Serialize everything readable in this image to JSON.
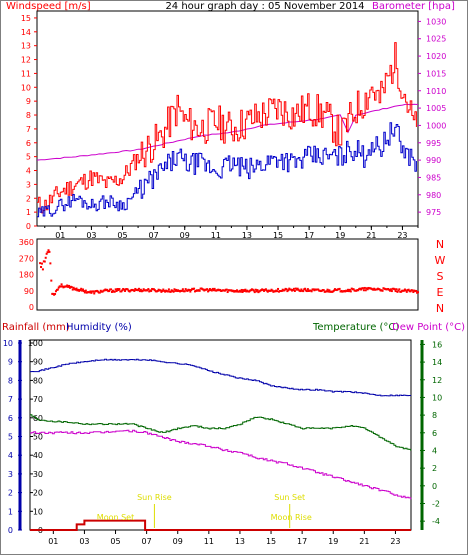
{
  "header": {
    "left_title": "Windspeed [m/s]",
    "center_title": "24 hour graph day : 05 November 2014",
    "right_title": "Barometer [hpa]"
  },
  "colors": {
    "wind": "#ff0000",
    "gust": "#ff0000",
    "avg": "#0000cc",
    "baro": "#cc00cc",
    "humidity": "#0000aa",
    "temperature": "#006600",
    "dewpoint": "#cc00cc",
    "rain": "#cc0000",
    "sun": "#dddd00",
    "axis": "#000000",
    "grid": "#bbbbbb"
  },
  "chart_data": [
    {
      "type": "line",
      "name": "wind-barometer",
      "x_ticks": [
        "01",
        "03",
        "05",
        "07",
        "09",
        "11",
        "13",
        "15",
        "17",
        "19",
        "21",
        "23"
      ],
      "x_hours": [
        1,
        3,
        5,
        7,
        9,
        11,
        13,
        15,
        17,
        19,
        21,
        23
      ],
      "xlim": [
        -0.5,
        24
      ],
      "left_axis": {
        "label": "Windspeed [m/s]",
        "ticks": [
          0,
          1,
          2,
          3,
          4,
          5,
          6,
          7,
          8,
          9,
          10,
          11,
          12,
          13,
          14,
          15
        ],
        "ylim": [
          0,
          15.5
        ]
      },
      "right_axis": {
        "label": "Barometer [hpa]",
        "ticks": [
          975,
          980,
          985,
          990,
          995,
          1000,
          1005,
          1010,
          1015,
          1020,
          1025,
          1030
        ],
        "ylim": [
          971,
          1033
        ]
      },
      "series": [
        {
          "name": "gust",
          "axis": "left",
          "x": [
            -0.5,
            0,
            1,
            2,
            3,
            4,
            5,
            6,
            6.5,
            7,
            7.5,
            8,
            8.5,
            9,
            10,
            11,
            12,
            13,
            14,
            15,
            16,
            17,
            18,
            19,
            19.5,
            20,
            20.5,
            21,
            21.5,
            22,
            22.5,
            23,
            23.5,
            24
          ],
          "y": [
            1.5,
            1.5,
            2.5,
            3,
            3.5,
            3,
            3.5,
            5,
            5.5,
            6,
            6.5,
            7.5,
            8.5,
            7.5,
            7,
            7.5,
            7,
            7.5,
            8,
            8.5,
            8,
            8.5,
            8,
            6.5,
            7.5,
            8.5,
            9,
            10,
            9,
            10.5,
            12,
            10,
            8,
            6.5
          ]
        },
        {
          "name": "average",
          "axis": "left",
          "x": [
            -0.5,
            0,
            1,
            2,
            3,
            4,
            5,
            6,
            6.5,
            7,
            7.5,
            8,
            8.5,
            9,
            10,
            11,
            12,
            13,
            14,
            15,
            16,
            17,
            18,
            19,
            19.5,
            20,
            20.5,
            21,
            21.5,
            22,
            22.5,
            23,
            23.5,
            24
          ],
          "y": [
            0.8,
            1,
            1.5,
            2,
            1.5,
            1.8,
            1.5,
            2.5,
            3,
            3.5,
            4,
            4.5,
            5,
            4.5,
            4.5,
            4,
            4.5,
            4,
            4.5,
            5,
            4.5,
            5,
            5,
            5,
            5.5,
            5.5,
            5,
            6,
            5.5,
            6.5,
            7,
            5.5,
            5,
            4.5
          ]
        },
        {
          "name": "barometer",
          "axis": "right",
          "x": [
            -0.5,
            2,
            4,
            6,
            7,
            8,
            9,
            10,
            12,
            14,
            16,
            18,
            19,
            19.5,
            20,
            21,
            22,
            23,
            24
          ],
          "y": [
            990,
            991,
            992,
            993,
            994,
            995,
            996,
            997,
            998,
            1000,
            1001,
            1002,
            1003,
            998,
            1003,
            1004,
            1005,
            1006,
            1006
          ]
        }
      ]
    },
    {
      "type": "scatter",
      "name": "wind-direction",
      "left_ticks": [
        0,
        90,
        180,
        270,
        360
      ],
      "right_labels": [
        "N",
        "W",
        "S",
        "E",
        "N"
      ],
      "ylim": [
        0,
        360
      ],
      "series": [
        {
          "name": "direction",
          "x": [
            -0.3,
            -0.1,
            0.1,
            0.3,
            0.5,
            1,
            2,
            3,
            4,
            6,
            8,
            10,
            12,
            14,
            16,
            18,
            20,
            21,
            22,
            23,
            24
          ],
          "y": [
            250,
            220,
            290,
            320,
            60,
            120,
            100,
            80,
            90,
            95,
            90,
            95,
            90,
            90,
            95,
            90,
            95,
            100,
            95,
            90,
            85
          ]
        }
      ]
    },
    {
      "type": "line",
      "name": "rain-humidity-temperature",
      "title_left": "Rainfall (mm)",
      "title_humidity": "Humidity (%)",
      "title_temperature": "Temperature (°C)",
      "title_dewpoint": "Dew Point (°C)",
      "x_ticks": [
        "01",
        "03",
        "05",
        "07",
        "09",
        "11",
        "13",
        "15",
        "17",
        "19",
        "21",
        "23"
      ],
      "rain_axis": {
        "ticks": [
          0,
          1,
          2,
          3,
          4,
          5,
          6,
          7,
          8,
          9,
          10
        ],
        "ylim": [
          0,
          10
        ]
      },
      "humidity_axis": {
        "ticks": [
          0,
          10,
          20,
          30,
          40,
          50,
          60,
          70,
          80,
          90,
          100
        ],
        "ylim": [
          0,
          100
        ]
      },
      "temp_axis": {
        "ticks": [
          -4,
          -2,
          0,
          2,
          4,
          6,
          8,
          10,
          12,
          14,
          16
        ],
        "ylim": [
          -5,
          16.5
        ]
      },
      "series": [
        {
          "name": "humidity",
          "axis": "humidity",
          "x": [
            -0.5,
            0,
            1,
            2,
            3,
            4,
            5,
            6,
            7,
            8,
            9,
            10,
            11,
            12,
            13,
            14,
            15,
            16,
            17,
            18,
            19,
            20,
            21,
            22,
            23,
            24
          ],
          "y": [
            85,
            85,
            87,
            89,
            90,
            91,
            91,
            91,
            91,
            90,
            89,
            88,
            85,
            83,
            81,
            80,
            77,
            76,
            75,
            75,
            74,
            74,
            73,
            72,
            72,
            72
          ]
        },
        {
          "name": "temperature",
          "axis": "temp",
          "x": [
            -0.5,
            0,
            1,
            2,
            3,
            4,
            5,
            6,
            7,
            8,
            9,
            10,
            11,
            12,
            13,
            14,
            15,
            16,
            17,
            18,
            19,
            20,
            21,
            22,
            23,
            24
          ],
          "y": [
            8,
            7.5,
            7.3,
            7.2,
            7,
            7,
            7,
            7,
            6.5,
            6,
            6.5,
            6.8,
            6.5,
            6.5,
            7,
            7.8,
            7.5,
            7,
            6.5,
            6.5,
            6.5,
            6.8,
            6.5,
            5.5,
            4.5,
            4
          ]
        },
        {
          "name": "dewpoint",
          "axis": "temp",
          "x": [
            -0.5,
            0,
            1,
            2,
            3,
            4,
            5,
            6,
            7,
            8,
            9,
            10,
            11,
            12,
            13,
            14,
            15,
            16,
            17,
            18,
            19,
            20,
            21,
            22,
            23,
            24
          ],
          "y": [
            6,
            6,
            6,
            6,
            6,
            6,
            6.2,
            6.2,
            6,
            5.5,
            5,
            4.8,
            4.5,
            4,
            3.8,
            3.2,
            2.8,
            2.5,
            2,
            1.5,
            1,
            0.5,
            0,
            -0.5,
            -1,
            -1.5
          ]
        },
        {
          "name": "rainfall",
          "axis": "rain",
          "x": [
            -0.5,
            1.5,
            2.5,
            3,
            6.8,
            6.9,
            7.2,
            24
          ],
          "y": [
            0,
            0,
            0.3,
            0.5,
            0.5,
            0,
            0,
            0
          ]
        }
      ],
      "annotations": [
        {
          "text": "Sun Rise",
          "x": 7.5,
          "pos": "upper"
        },
        {
          "text": "Sun Set",
          "x": 16.2,
          "pos": "upper"
        },
        {
          "text": "Moon Set",
          "x": 5.0,
          "pos": "lower"
        },
        {
          "text": "Moon Rise",
          "x": 16.3,
          "pos": "lower"
        }
      ]
    }
  ],
  "axis_labels_panel1_left": [
    "0",
    "1",
    "2",
    "3",
    "4",
    "5",
    "6",
    "7",
    "8",
    "9",
    "10",
    "11",
    "12",
    "13",
    "14",
    "15"
  ]
}
